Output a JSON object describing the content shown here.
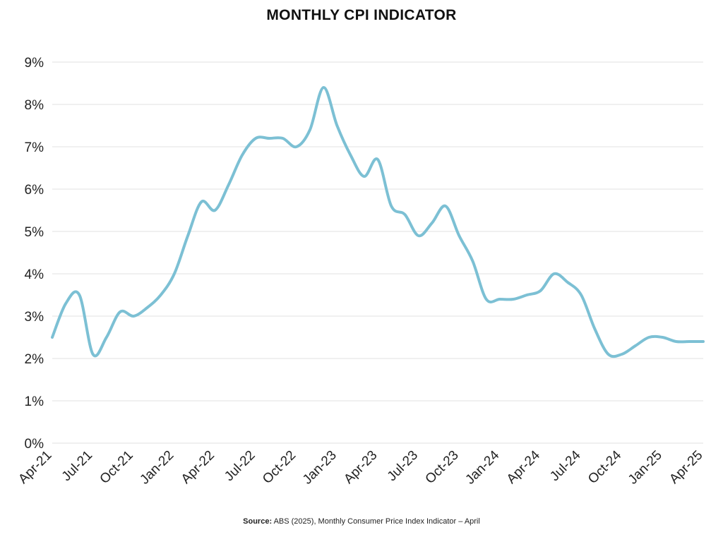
{
  "chart_data": {
    "type": "line",
    "title": "MONTHLY CPI INDICATOR",
    "xlabel": "",
    "ylabel": "",
    "ylim": [
      0,
      9
    ],
    "y_ticks": [
      "0%",
      "1%",
      "2%",
      "3%",
      "4%",
      "5%",
      "6%",
      "7%",
      "8%",
      "9%"
    ],
    "x_ticks": [
      "Apr-21",
      "Jul-21",
      "Oct-21",
      "Jan-22",
      "Apr-22",
      "Jul-22",
      "Oct-22",
      "Jan-23",
      "Apr-23",
      "Jul-23",
      "Oct-23",
      "Jan-24",
      "Apr-24",
      "Jul-24",
      "Oct-24",
      "Jan-25",
      "Apr-25"
    ],
    "grid": "horizontal",
    "legend": "none",
    "line_color": "#7cc0d4",
    "series": [
      {
        "x": [
          "Apr-21",
          "May-21",
          "Jun-21",
          "Jul-21",
          "Aug-21",
          "Sep-21",
          "Oct-21",
          "Nov-21",
          "Dec-21",
          "Jan-22",
          "Feb-22",
          "Mar-22",
          "Apr-22",
          "May-22",
          "Jun-22",
          "Jul-22",
          "Aug-22",
          "Sep-22",
          "Oct-22",
          "Nov-22",
          "Dec-22",
          "Jan-23",
          "Feb-23",
          "Mar-23",
          "Apr-23",
          "May-23",
          "Jun-23",
          "Jul-23",
          "Aug-23",
          "Sep-23",
          "Oct-23",
          "Nov-23",
          "Dec-23",
          "Jan-24",
          "Feb-24",
          "Mar-24",
          "Apr-24",
          "May-24",
          "Jun-24",
          "Jul-24",
          "Aug-24",
          "Sep-24",
          "Oct-24",
          "Nov-24",
          "Dec-24",
          "Jan-25",
          "Feb-25",
          "Mar-25",
          "Apr-25"
        ],
        "values": [
          2.5,
          3.3,
          3.5,
          2.1,
          2.5,
          3.1,
          3.0,
          3.2,
          3.5,
          4.0,
          4.9,
          5.7,
          5.5,
          6.1,
          6.8,
          7.2,
          7.2,
          7.2,
          7.0,
          7.4,
          8.4,
          7.5,
          6.8,
          6.3,
          6.7,
          5.6,
          5.4,
          4.9,
          5.2,
          5.6,
          4.9,
          4.3,
          3.4,
          3.4,
          3.4,
          3.5,
          3.6,
          4.0,
          3.8,
          3.5,
          2.7,
          2.1,
          2.1,
          2.3,
          2.5,
          2.5,
          2.4,
          2.4,
          2.4
        ]
      }
    ]
  },
  "source": {
    "label": "Source:",
    "text": " ABS (2025), Monthly Consumer Price Index Indicator – April"
  }
}
